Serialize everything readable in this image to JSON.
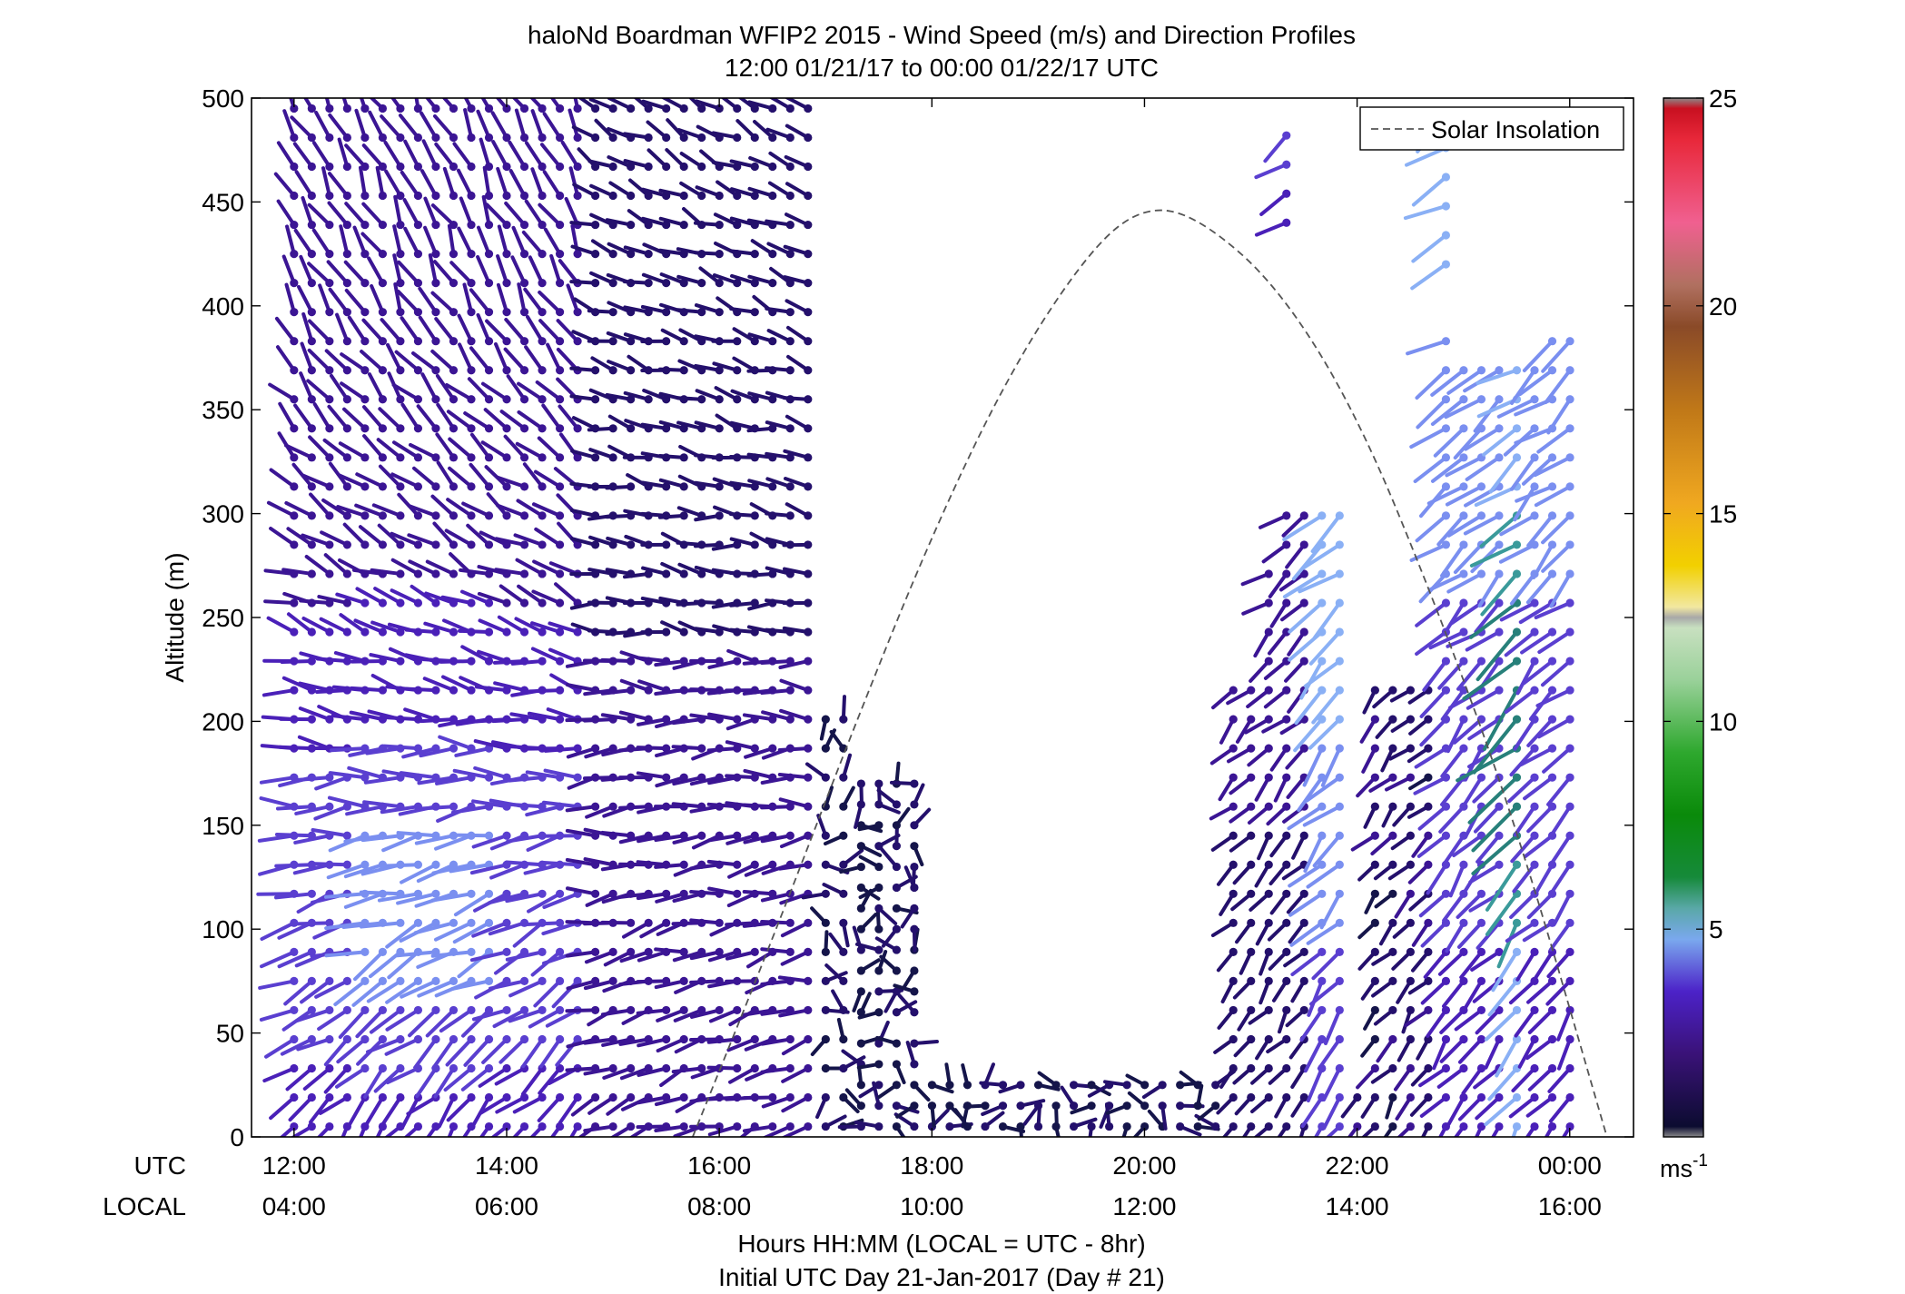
{
  "chart_data": {
    "type": "scatter",
    "title": "haloNd Boardman WFIP2 2015 - Wind Speed (m/s) and Direction Profiles",
    "subtitle": "12:00 01/21/17 to 00:00 01/22/17  UTC",
    "ylabel": "Altitude (m)",
    "xlabel": "Hours HH:MM  (LOCAL = UTC - 8hr)",
    "xlabel2": "Initial UTC Day 21-Jan-2017 (Day # 21)",
    "xlim": [
      11.6,
      24.6
    ],
    "ylim": [
      0,
      500
    ],
    "yticks": [
      0,
      50,
      100,
      150,
      200,
      250,
      300,
      350,
      400,
      450,
      500
    ],
    "xticks_hours": [
      12,
      14,
      16,
      18,
      20,
      22,
      24
    ],
    "utc_row_label": "UTC",
    "local_row_label": "LOCAL",
    "utc_tick_labels": [
      "12:00",
      "14:00",
      "16:00",
      "18:00",
      "20:00",
      "22:00",
      "00:00"
    ],
    "local_tick_labels": [
      "04:00",
      "06:00",
      "08:00",
      "10:00",
      "12:00",
      "14:00",
      "16:00"
    ],
    "legend": {
      "entry": "Solar Insolation",
      "position": "top-right"
    },
    "colorbar": {
      "range": [
        0,
        25
      ],
      "ticks": [
        5,
        10,
        15,
        20,
        25
      ],
      "unit_label": "ms",
      "unit_exponent": "-1"
    },
    "solar_insolation": {
      "hours": [
        15.75,
        16.5,
        17.25,
        18,
        18.75,
        19.5,
        20.0,
        20.5,
        21.25,
        22,
        22.75,
        23.5,
        24.35
      ],
      "altitudes": [
        0,
        95,
        195,
        290,
        370,
        428,
        448,
        443,
        410,
        348,
        255,
        150,
        0
      ]
    },
    "wind_profiles": [
      {
        "time": "12:00-14:45",
        "altitudes": "5-500 m",
        "speed": "2-4.5 m/s",
        "direction": "veering from SW near surface to NW-N aloft"
      },
      {
        "time": "14:45-16:50",
        "altitudes": "5-500 m",
        "speed": "0.5-2.5 m/s",
        "direction": "W to NW, variable near 450 m"
      },
      {
        "time": "17:00-18:00",
        "altitudes": "5-205 m",
        "speed": "0.5-1.5 m/s",
        "direction": "light and variable"
      },
      {
        "time": "18:00-20:45",
        "altitudes": "5-25 m",
        "speed": "0.5-1.5 m/s",
        "direction": "light and variable"
      },
      {
        "time": "20:45-21:50",
        "altitudes": "5-500 m",
        "speed": "1-4.5 m/s",
        "direction": "SW, stronger aloft"
      },
      {
        "time": "22:00-24:00",
        "altitudes": "5-500 m",
        "speed": "1-10 m/s",
        "direction": "SW, peak 9-10 m/s near 150-250 m at 23:30"
      }
    ]
  }
}
